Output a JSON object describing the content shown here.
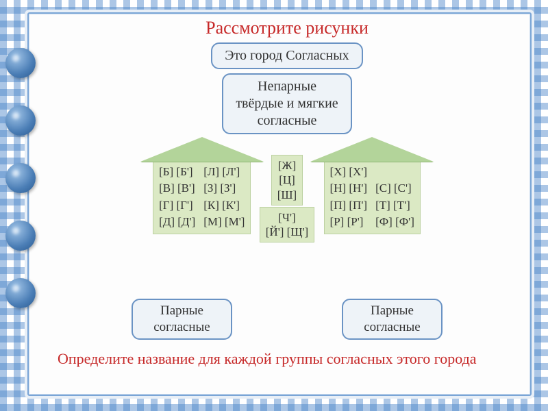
{
  "title": "Рассмотрите    рисунки",
  "header": "Это   город   Согласных",
  "subheader": "Непарные\nтвёрдые и мягкие\nсогласные",
  "left_house": {
    "col1": [
      "[Б]  [Б']",
      "[В]  [В']",
      "[Г]  [Г']",
      "[Д]  [Д']"
    ],
    "col2": [
      "[Л]  [Л']",
      "[З]  [З']",
      "[К]  [К']",
      "[М]  [М']"
    ]
  },
  "center_top": [
    "[Ж]",
    "[Ц]",
    "[Ш]"
  ],
  "center_bottom": [
    "[Ч']",
    "[Й']  [Щ']"
  ],
  "right_house": {
    "col1": [
      "[Х]  [Х']",
      "[Н]  [Н']",
      "[П]  [П']",
      "[Р]  [Р']"
    ],
    "col2": [
      "",
      "[С]  [С']",
      "[Т]  [Т']",
      "[Ф]  [Ф']"
    ]
  },
  "bottom_left": "Парные\nсогласные",
  "bottom_right": "Парные\nсогласные",
  "question": "Определите   название   для  каждой   группы согласных   этого   города",
  "colors": {
    "title": "#c62828",
    "pill_bg": "#eef3f8",
    "pill_border": "#6a93c4",
    "house_bg": "#dbe9c4",
    "house_border": "#bcd1a1",
    "roof": "#b3d49a",
    "page_border": "#7aa5d6",
    "gingham": "#4682c8"
  },
  "typography": {
    "title_size": 26,
    "pill_size": 20,
    "cell_size": 17,
    "question_size": 22
  }
}
